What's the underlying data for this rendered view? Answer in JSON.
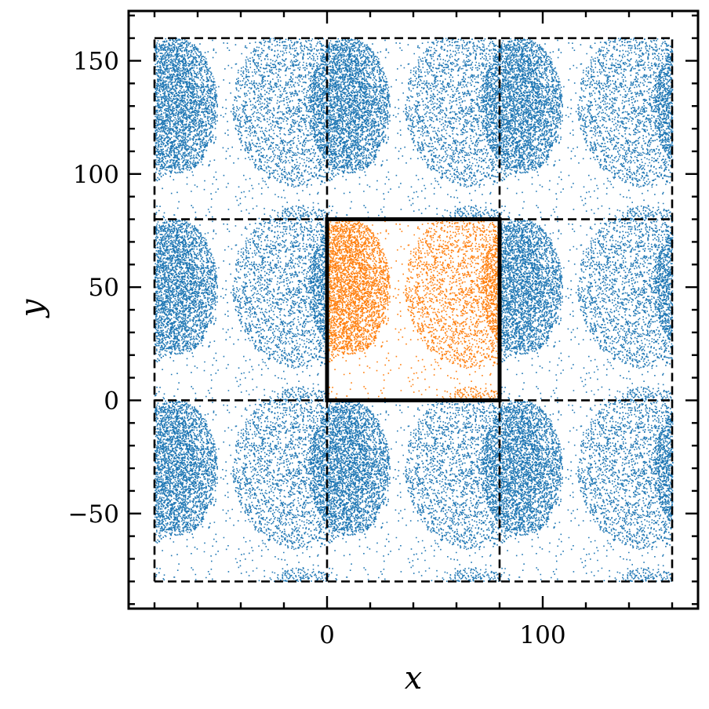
{
  "chart_data": {
    "type": "scatter",
    "title": "",
    "xlabel": "x",
    "ylabel": "y",
    "xlim": [
      -92,
      172
    ],
    "ylim": [
      -92,
      172
    ],
    "xticks": [
      0,
      100
    ],
    "yticks": [
      -50,
      0,
      50,
      100,
      150
    ],
    "tick_labels": {
      "x": [
        "0",
        "100"
      ],
      "y": [
        "−50",
        "0",
        "50",
        "100",
        "150"
      ]
    },
    "grid": false,
    "legend": "none",
    "box_size": 80,
    "periodic_images": {
      "x_shifts": [
        -80,
        0,
        80
      ],
      "y_shifts": [
        -80,
        0,
        80
      ]
    },
    "series": [
      {
        "role": "periodic images",
        "color": "#1f77b4",
        "extent": {
          "x": [
            -80,
            160
          ],
          "y": [
            -80,
            160
          ]
        }
      },
      {
        "role": "simulation cell",
        "color": "#ff7f0e",
        "extent": {
          "x": [
            0,
            80
          ],
          "y": [
            0,
            80
          ]
        },
        "dense_regions": [
          {
            "cx": 68,
            "cy": 50,
            "rx": 32,
            "ry": 36
          },
          {
            "cx": 10,
            "cy": 50,
            "rx": 19,
            "ry": 30
          }
        ]
      }
    ],
    "boxes": [
      {
        "role": "cell-border",
        "x": [
          0,
          80
        ],
        "y": [
          0,
          80
        ],
        "style": "solid"
      },
      {
        "role": "image-grid",
        "x_lines": [
          -80,
          0,
          80,
          160
        ],
        "y_lines": [
          -80,
          0,
          80,
          160
        ],
        "style": "dashed"
      }
    ]
  }
}
